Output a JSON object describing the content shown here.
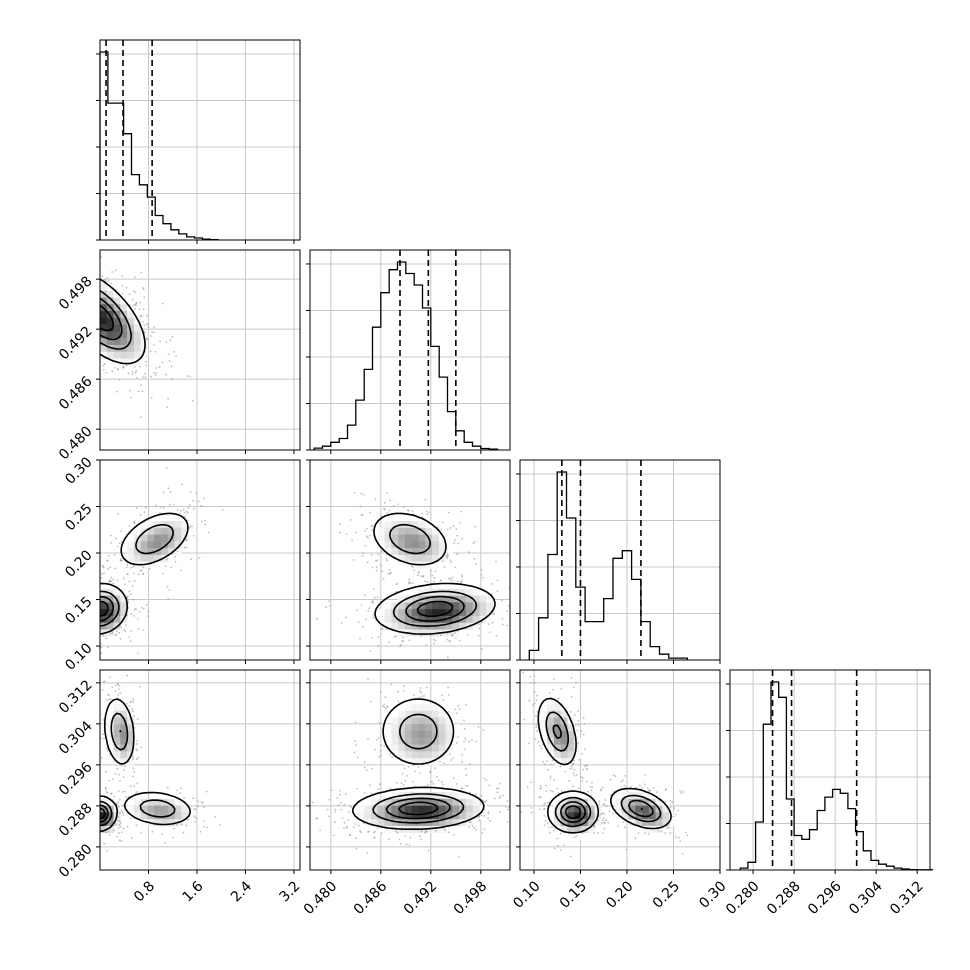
{
  "chart_data": {
    "type": "corner",
    "description_of_panels": "lower-triangle 2D density contours with scatter, diagonal 1D histograms with dashed quantile lines",
    "parameters": [
      {
        "id": "p0",
        "range": [
          0.0,
          3.3
        ],
        "ticks": [
          0.8,
          1.6,
          2.4,
          3.2
        ],
        "tick_labels": [
          "0.8",
          "1.6",
          "2.4",
          "3.2"
        ]
      },
      {
        "id": "p1",
        "range": [
          0.4775,
          0.5015
        ],
        "ticks": [
          0.48,
          0.486,
          0.492,
          0.498
        ],
        "tick_labels": [
          "0.480",
          "0.486",
          "0.492",
          "0.498"
        ]
      },
      {
        "id": "p2",
        "range": [
          0.085,
          0.3
        ],
        "ticks": [
          0.1,
          0.15,
          0.2,
          0.25,
          0.3
        ],
        "tick_labels": [
          "0.10",
          "0.15",
          "0.20",
          "0.25",
          "0.30"
        ]
      },
      {
        "id": "p3",
        "range": [
          0.2755,
          0.3145
        ],
        "ticks": [
          0.28,
          0.288,
          0.296,
          0.304,
          0.312
        ],
        "tick_labels": [
          "0.280",
          "0.288",
          "0.296",
          "0.304",
          "0.312"
        ]
      }
    ],
    "histograms": [
      {
        "param": "p0",
        "bin_start": 0.0,
        "bin_width": 0.13,
        "counts": [
          0.92,
          0.67,
          0.67,
          0.52,
          0.32,
          0.27,
          0.21,
          0.12,
          0.08,
          0.05,
          0.03,
          0.015,
          0.01,
          0.004,
          0.002
        ],
        "quantiles": [
          0.1,
          0.38,
          0.86
        ]
      },
      {
        "param": "p1",
        "bin_start": 0.478,
        "bin_width": 0.001,
        "counts": [
          0.01,
          0.02,
          0.04,
          0.06,
          0.13,
          0.26,
          0.42,
          0.64,
          0.82,
          0.94,
          0.98,
          0.92,
          0.86,
          0.74,
          0.54,
          0.38,
          0.2,
          0.1,
          0.04,
          0.02,
          0.008,
          0.004
        ],
        "quantiles": [
          0.4883,
          0.4917,
          0.495
        ]
      },
      {
        "param": "p2",
        "bin_start": 0.095,
        "bin_width": 0.01,
        "counts": [
          0.05,
          0.22,
          0.55,
          0.98,
          0.74,
          0.38,
          0.2,
          0.2,
          0.32,
          0.53,
          0.57,
          0.42,
          0.2,
          0.07,
          0.03,
          0.01,
          0.01
        ],
        "quantiles": [
          0.13,
          0.15,
          0.215
        ]
      },
      {
        "param": "p3",
        "bin_start": 0.2775,
        "bin_width": 0.0015,
        "counts": [
          0.01,
          0.04,
          0.25,
          0.76,
          0.98,
          0.9,
          0.37,
          0.18,
          0.16,
          0.21,
          0.31,
          0.38,
          0.42,
          0.4,
          0.32,
          0.2,
          0.1,
          0.05,
          0.03,
          0.02,
          0.01,
          0.005,
          0.002,
          0.001,
          0.001
        ],
        "quantiles": [
          0.2838,
          0.2875,
          0.3002
        ]
      }
    ],
    "densities": [
      {
        "x": "p0",
        "y": "p1",
        "modes": [
          {
            "cx": 0.0,
            "cy": 0.4935,
            "sx": 0.33,
            "sy": 0.0025,
            "rho": -0.6,
            "w": 1.0
          }
        ]
      },
      {
        "x": "p0",
        "y": "p2",
        "modes": [
          {
            "cx": 0.0,
            "cy": 0.14,
            "sx": 0.2,
            "sy": 0.012,
            "rho": 0.1,
            "w": 1.0
          },
          {
            "cx": 0.9,
            "cy": 0.215,
            "sx": 0.28,
            "sy": 0.014,
            "rho": 0.45,
            "w": 0.55
          }
        ]
      },
      {
        "x": "p1",
        "y": "p2",
        "modes": [
          {
            "cx": 0.4925,
            "cy": 0.14,
            "sx": 0.0032,
            "sy": 0.012,
            "rho": 0.2,
            "w": 1.0
          },
          {
            "cx": 0.4895,
            "cy": 0.215,
            "sx": 0.0022,
            "sy": 0.014,
            "rho": -0.3,
            "w": 0.55
          }
        ]
      },
      {
        "x": "p0",
        "y": "p3",
        "modes": [
          {
            "cx": 0.0,
            "cy": 0.2865,
            "sx": 0.12,
            "sy": 0.0015,
            "rho": 0.0,
            "w": 1.0
          },
          {
            "cx": 0.32,
            "cy": 0.3025,
            "sx": 0.12,
            "sy": 0.0032,
            "rho": -0.2,
            "w": 0.55
          },
          {
            "cx": 0.95,
            "cy": 0.2875,
            "sx": 0.28,
            "sy": 0.0016,
            "rho": -0.2,
            "w": 0.5
          }
        ]
      },
      {
        "x": "p1",
        "y": "p3",
        "modes": [
          {
            "cx": 0.4905,
            "cy": 0.2875,
            "sx": 0.0035,
            "sy": 0.0018,
            "rho": 0.1,
            "w": 1.0
          },
          {
            "cx": 0.4905,
            "cy": 0.3025,
            "sx": 0.0022,
            "sy": 0.0033,
            "rho": 0.0,
            "w": 0.5
          }
        ]
      },
      {
        "x": "p2",
        "y": "p3",
        "modes": [
          {
            "cx": 0.142,
            "cy": 0.2868,
            "sx": 0.012,
            "sy": 0.0018,
            "rho": 0.0,
            "w": 1.0
          },
          {
            "cx": 0.215,
            "cy": 0.2875,
            "sx": 0.015,
            "sy": 0.0018,
            "rho": -0.4,
            "w": 0.8
          },
          {
            "cx": 0.125,
            "cy": 0.3025,
            "sx": 0.01,
            "sy": 0.0032,
            "rho": -0.4,
            "w": 0.6
          }
        ]
      }
    ],
    "grid": true,
    "colors": {
      "axis": "#000000",
      "grid": "#c8c8c8",
      "contour": "#000000",
      "scatter": "#8a8a8a",
      "fill_dark": "#000000",
      "fill_light": "#ffffff"
    }
  }
}
